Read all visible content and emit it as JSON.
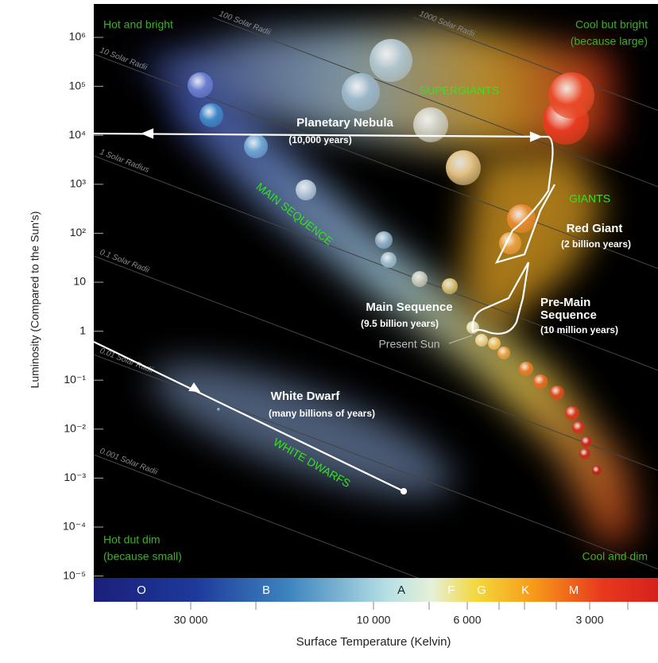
{
  "axes": {
    "y_title": "Luminosity (Compared to the Sun's)",
    "y_ticks": [
      "10⁶",
      "10⁵",
      "10⁴",
      "10³",
      "10²",
      "10",
      "1",
      "10⁻¹",
      "10⁻²",
      "10⁻³",
      "10⁻⁴",
      "10⁻⁵"
    ],
    "x_title": "Surface Temperature (Kelvin)",
    "x_ticks": [
      "30 000",
      "10 000",
      "6 000",
      "3 000"
    ]
  },
  "spectral_classes": [
    "O",
    "B",
    "A",
    "F",
    "G",
    "K",
    "M"
  ],
  "corner_labels": {
    "top_left": "Hot and bright",
    "top_right": [
      "Cool but bright",
      "(because large)"
    ],
    "bottom_left": [
      "Hot dut dim",
      "(because small)"
    ],
    "bottom_right": "Cool and dim"
  },
  "regions": {
    "supergiants": "SUPERGIANTS",
    "giants": "GIANTS",
    "main_sequence": "MAIN SEQUENCE",
    "white_dwarfs": "WHITE DWARFS"
  },
  "radii_labels": [
    "1000 Solar Radii",
    "100 Solar Radii",
    "10 Solar Radii",
    "1 Solar Radius",
    "0.1 Solar Radii",
    "0.01 Solar Radii",
    "0.001 Solar Radii"
  ],
  "stages": {
    "planetary_nebula": {
      "title": "Planetary Nebula",
      "duration": "(10,000 years)"
    },
    "red_giant": {
      "title": "Red Giant",
      "duration": "(2 billion years)"
    },
    "main_sequence": {
      "title": "Main Sequence",
      "duration": "(9.5 billion years)"
    },
    "present_sun": "Present Sun",
    "pre_main_sequence": {
      "title": [
        "Pre-Main",
        "Sequence"
      ],
      "duration": "(10 million years)"
    },
    "white_dwarf": {
      "title": "White Dwarf",
      "duration": "(many billions of years)"
    }
  }
}
